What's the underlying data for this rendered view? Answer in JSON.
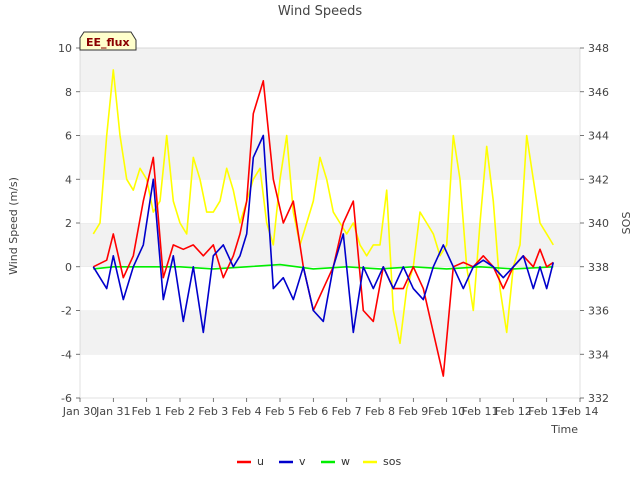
{
  "chart_data": {
    "type": "line",
    "title": "Wind Speeds",
    "xlabel": "Time",
    "ylabel": "Wind Speed (m/s)",
    "y2label": "SOS",
    "badge": "EE_flux",
    "x_tick_labels": [
      "Jan 30",
      "Jan 31",
      "Feb 1",
      "Feb 2",
      "Feb 3",
      "Feb 4",
      "Feb 5",
      "Feb 6",
      "Feb 7",
      "Feb 8",
      "Feb 9",
      "Feb 10",
      "Feb 11",
      "Feb 12",
      "Feb 13",
      "Feb 14"
    ],
    "y_ticks": [
      -6,
      -4,
      -2,
      0,
      2,
      4,
      6,
      8,
      10
    ],
    "y2_ticks": [
      332,
      334,
      336,
      338,
      340,
      342,
      344,
      346,
      348
    ],
    "ylim": [
      -6,
      10
    ],
    "y2lim": [
      332,
      348
    ],
    "x_days": [
      0,
      15
    ],
    "grid": "horizontal bands",
    "legend_position": "bottom-center",
    "series": [
      {
        "name": "u",
        "axis": "left",
        "color": "#ff0000",
        "x": [
          0.4,
          0.8,
          1.0,
          1.3,
          1.6,
          1.9,
          2.2,
          2.5,
          2.8,
          3.1,
          3.4,
          3.7,
          4.0,
          4.3,
          4.6,
          4.8,
          5.0,
          5.2,
          5.5,
          5.8,
          6.1,
          6.4,
          6.7,
          7.0,
          7.3,
          7.6,
          7.9,
          8.2,
          8.5,
          8.8,
          9.1,
          9.4,
          9.7,
          10.0,
          10.3,
          10.6,
          10.9,
          11.2,
          11.5,
          11.8,
          12.1,
          12.4,
          12.7,
          13.0,
          13.3,
          13.6,
          13.8,
          14.0,
          14.2
        ],
        "y": [
          0,
          0.3,
          1.5,
          -0.5,
          0.5,
          3,
          5,
          -0.5,
          1,
          0.8,
          1,
          0.5,
          1,
          -0.5,
          0.5,
          1.5,
          3,
          7,
          8.5,
          4,
          2,
          3,
          0,
          -2,
          -1,
          0,
          2,
          3,
          -2,
          -2.5,
          0,
          -1,
          -1,
          0,
          -1,
          -3,
          -5,
          0,
          0.2,
          0,
          0.5,
          0,
          -1,
          0,
          0.5,
          0,
          0.8,
          0,
          0.2
        ]
      },
      {
        "name": "v",
        "axis": "left",
        "color": "#0000cc",
        "x": [
          0.4,
          0.8,
          1.0,
          1.3,
          1.6,
          1.9,
          2.2,
          2.5,
          2.8,
          3.1,
          3.4,
          3.7,
          4.0,
          4.3,
          4.6,
          4.8,
          5.0,
          5.2,
          5.5,
          5.8,
          6.1,
          6.4,
          6.7,
          7.0,
          7.3,
          7.6,
          7.9,
          8.2,
          8.5,
          8.8,
          9.1,
          9.4,
          9.7,
          10.0,
          10.3,
          10.6,
          10.9,
          11.2,
          11.5,
          11.8,
          12.1,
          12.4,
          12.7,
          13.0,
          13.3,
          13.6,
          13.8,
          14.0,
          14.2
        ],
        "y": [
          0,
          -1,
          0.5,
          -1.5,
          0,
          1,
          4,
          -1.5,
          0.5,
          -2.5,
          0,
          -3,
          0.5,
          1,
          0,
          0.5,
          1.5,
          5,
          6,
          -1,
          -0.5,
          -1.5,
          0,
          -2,
          -2.5,
          0,
          1.5,
          -3,
          0,
          -1,
          0,
          -1,
          0,
          -1,
          -1.5,
          0,
          1,
          0,
          -1,
          0,
          0.3,
          0,
          -0.5,
          0,
          0.5,
          -1,
          0,
          -1,
          0.2
        ]
      },
      {
        "name": "w",
        "axis": "left",
        "color": "#00ee00",
        "x": [
          0.4,
          1.0,
          2.0,
          3.0,
          4.0,
          5.0,
          6.0,
          7.0,
          8.0,
          9.0,
          10.0,
          11.0,
          12.0,
          13.0,
          14.2
        ],
        "y": [
          -0.1,
          0,
          0,
          0,
          -0.1,
          0,
          0.1,
          -0.1,
          0,
          -0.1,
          0,
          -0.1,
          0,
          -0.1,
          0
        ]
      },
      {
        "name": "sos",
        "axis": "right",
        "color": "#ffff00",
        "x": [
          0.4,
          0.6,
          0.8,
          1.0,
          1.2,
          1.4,
          1.6,
          1.8,
          2.0,
          2.2,
          2.4,
          2.6,
          2.8,
          3.0,
          3.2,
          3.4,
          3.6,
          3.8,
          4.0,
          4.2,
          4.4,
          4.6,
          4.8,
          5.0,
          5.2,
          5.4,
          5.6,
          5.8,
          6.0,
          6.2,
          6.4,
          6.6,
          6.8,
          7.0,
          7.2,
          7.4,
          7.6,
          7.8,
          8.0,
          8.2,
          8.4,
          8.6,
          8.8,
          9.0,
          9.2,
          9.4,
          9.6,
          9.8,
          10.0,
          10.2,
          10.4,
          10.6,
          10.8,
          11.0,
          11.2,
          11.4,
          11.6,
          11.8,
          12.0,
          12.2,
          12.4,
          12.6,
          12.8,
          13.0,
          13.2,
          13.4,
          13.6,
          13.8,
          14.0,
          14.2
        ],
        "y": [
          339.5,
          340,
          344,
          347,
          344,
          342,
          341.5,
          342.5,
          342,
          340.5,
          341,
          344,
          341,
          340,
          339.5,
          343,
          342,
          340.5,
          340.5,
          341,
          342.5,
          341.5,
          340,
          341,
          342,
          342.5,
          340,
          339,
          342,
          344,
          340.5,
          339,
          340,
          341,
          343,
          342,
          340.5,
          340,
          339.5,
          340,
          339,
          338.5,
          339,
          339,
          341.5,
          336,
          334.5,
          337,
          338,
          340.5,
          340,
          339.5,
          338.5,
          339,
          344,
          342,
          338,
          336,
          340,
          343.5,
          341,
          337,
          335,
          338,
          339,
          344,
          342,
          340,
          339.5,
          339
        ]
      }
    ],
    "legend": [
      {
        "name": "u",
        "color": "#ff0000"
      },
      {
        "name": "v",
        "color": "#0000cc"
      },
      {
        "name": "w",
        "color": "#00ee00"
      },
      {
        "name": "sos",
        "color": "#ffff00"
      }
    ]
  }
}
